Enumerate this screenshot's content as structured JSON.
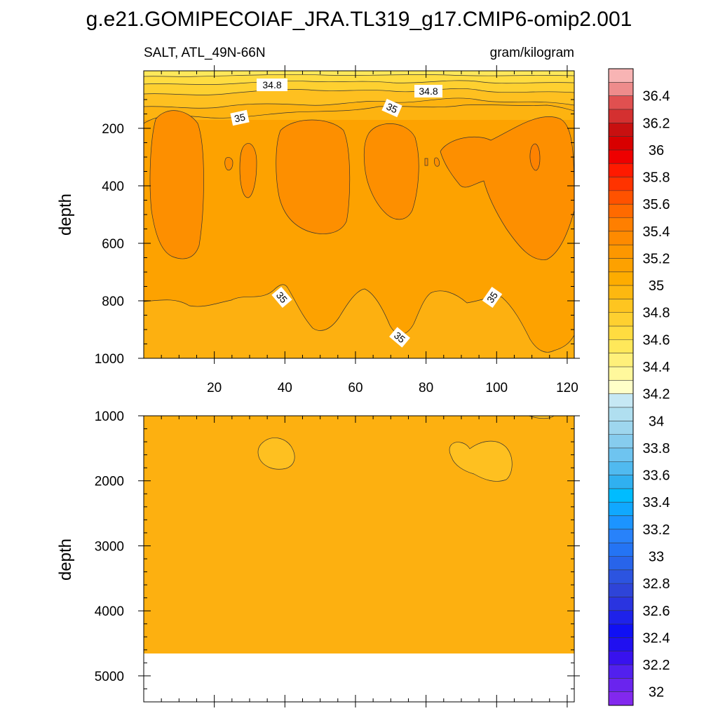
{
  "title": "g.e21.GOMIPECOIAF_JRA.TL319_g17.CMIP6-omip2.001",
  "chart_data": [
    {
      "type": "heatmap",
      "panel": "upper",
      "left_label": "SALT, ATL_49N-66N",
      "right_label": "gram/kilogram",
      "xlabel": "",
      "ylabel": "depth",
      "xlim": [
        0,
        122
      ],
      "ylim": [
        1000,
        0
      ],
      "xticks": [
        20,
        40,
        60,
        80,
        100,
        120
      ],
      "yticks": [
        200,
        400,
        600,
        800,
        1000
      ],
      "contour_labels": [
        "34.8",
        "34.8",
        "35",
        "35",
        "35",
        "35",
        "35"
      ],
      "fields": {
        "background_value": 35.0,
        "surface_range": [
          34.6,
          34.9
        ],
        "core_value": 35.1,
        "deep_value": 34.95
      }
    },
    {
      "type": "heatmap",
      "panel": "lower",
      "ylabel": "depth",
      "xlim": [
        0,
        122
      ],
      "ylim": [
        5400,
        1000
      ],
      "yticks": [
        1000,
        2000,
        3000,
        4000,
        5000
      ],
      "bottom_depth": 4600,
      "fields": {
        "background_value": 34.95,
        "patch_value": 34.9
      }
    }
  ],
  "colorbar": {
    "labels": [
      "36.4",
      "36.2",
      "36",
      "35.8",
      "35.6",
      "35.4",
      "35.2",
      "35",
      "34.8",
      "34.6",
      "34.4",
      "34.2",
      "34",
      "33.8",
      "33.6",
      "33.4",
      "33.2",
      "33",
      "32.8",
      "32.6",
      "32.4",
      "32.2",
      "32"
    ],
    "colors": [
      "#f8b4b4",
      "#ee8c8c",
      "#e05050",
      "#d43030",
      "#c81010",
      "#d80000",
      "#ee0000",
      "#ff1a00",
      "#ff3300",
      "#ff5200",
      "#ff6a00",
      "#ff7f00",
      "#fe8a00",
      "#fd9700",
      "#fda100",
      "#fdac00",
      "#fdb810",
      "#fec520",
      "#fed030",
      "#ffdc40",
      "#ffe85a",
      "#fff07a",
      "#fff89c",
      "#ffffc8",
      "#c6e8f4",
      "#b0dff0",
      "#9ed6ee",
      "#86ccee",
      "#6ec4f0",
      "#50baf0",
      "#30b0f0",
      "#00bcff",
      "#10a8ff",
      "#1c94ff",
      "#2882fa",
      "#2474f4",
      "#2864ea",
      "#2c54e0",
      "#2e44d8",
      "#2a34e0",
      "#1e22ea",
      "#1010f4",
      "#2010f0",
      "#3812ee",
      "#5220ee",
      "#6a24ee",
      "#8228ee"
    ]
  }
}
